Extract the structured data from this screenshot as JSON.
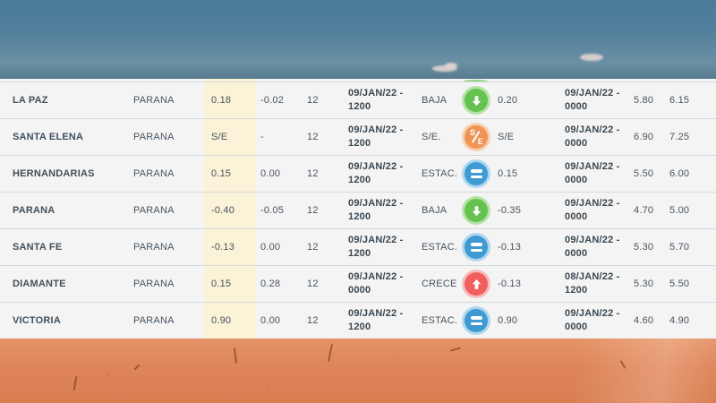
{
  "scene": {
    "sky_top": "#4a7b9a",
    "sky_bottom": "#6b90a4",
    "cloud_color": "#ead9d5",
    "sand_top": "#e59468",
    "sand_bottom": "#d97e52"
  },
  "table": {
    "row_bg": "#f4f4f5",
    "divider_color": "#d5d9db",
    "highlight_bg": "#fbf3d8",
    "text_color": "#47545e",
    "rows": [
      {
        "station": "LA PAZ",
        "river": "PARANA",
        "level": "0.18",
        "change": "-0.02",
        "hours": "12",
        "date1a": "09/JAN/22 -",
        "date1b": "1200",
        "trend": "BAJA",
        "trend_type": "baja",
        "forecast": "0.20",
        "date2a": "09/JAN/22 -",
        "date2b": "0000",
        "alert": "5.80",
        "evac": "6.15"
      },
      {
        "station": "SANTA ELENA",
        "river": "PARANA",
        "level": "S/E",
        "change": "-",
        "hours": "12",
        "date1a": "09/JAN/22 -",
        "date1b": "1200",
        "trend": "S/E.",
        "trend_type": "se",
        "forecast": "S/E",
        "date2a": "09/JAN/22 -",
        "date2b": "0000",
        "alert": "6.90",
        "evac": "7.25"
      },
      {
        "station": "HERNANDARIAS",
        "river": "PARANA",
        "level": "0.15",
        "change": "0.00",
        "hours": "12",
        "date1a": "09/JAN/22 -",
        "date1b": "1200",
        "trend": "ESTAC.",
        "trend_type": "estac",
        "forecast": "0.15",
        "date2a": "09/JAN/22 -",
        "date2b": "0000",
        "alert": "5.50",
        "evac": "6.00"
      },
      {
        "station": "PARANA",
        "river": "PARANA",
        "level": "-0.40",
        "change": "-0.05",
        "hours": "12",
        "date1a": "09/JAN/22 -",
        "date1b": "1200",
        "trend": "BAJA",
        "trend_type": "baja",
        "forecast": "-0.35",
        "date2a": "09/JAN/22 -",
        "date2b": "0000",
        "alert": "4.70",
        "evac": "5.00"
      },
      {
        "station": "SANTA FE",
        "river": "PARANA",
        "level": "-0.13",
        "change": "0.00",
        "hours": "12",
        "date1a": "09/JAN/22 -",
        "date1b": "1200",
        "trend": "ESTAC.",
        "trend_type": "estac",
        "forecast": "-0.13",
        "date2a": "09/JAN/22 -",
        "date2b": "0000",
        "alert": "5.30",
        "evac": "5.70"
      },
      {
        "station": "DIAMANTE",
        "river": "PARANA",
        "level": "0.15",
        "change": "0.28",
        "hours": "12",
        "date1a": "09/JAN/22 -",
        "date1b": "0000",
        "trend": "CRECE",
        "trend_type": "crece",
        "forecast": "-0.13",
        "date2a": "08/JAN/22 -",
        "date2b": "1200",
        "alert": "5.30",
        "evac": "5.50"
      },
      {
        "station": "VICTORIA",
        "river": "PARANA",
        "level": "0.90",
        "change": "0.00",
        "hours": "12",
        "date1a": "09/JAN/22 -",
        "date1b": "1200",
        "trend": "ESTAC.",
        "trend_type": "estac",
        "forecast": "0.90",
        "date2a": "09/JAN/22 -",
        "date2b": "0000",
        "alert": "4.60",
        "evac": "4.90"
      }
    ]
  },
  "icons": {
    "baja": {
      "glyph": "down-arrow-icon",
      "circle": "#66c24e",
      "halo": "#b5e3a6"
    },
    "se": {
      "glyph": "s-e-icon",
      "circle": "#ee9556",
      "halo": "#f7cfae"
    },
    "estac": {
      "glyph": "equals-icon",
      "circle": "#3f9ad2",
      "halo": "#aed7f0"
    },
    "crece": {
      "glyph": "up-arrow-icon",
      "circle": "#f15e5e",
      "halo": "#f8bcbc"
    }
  }
}
